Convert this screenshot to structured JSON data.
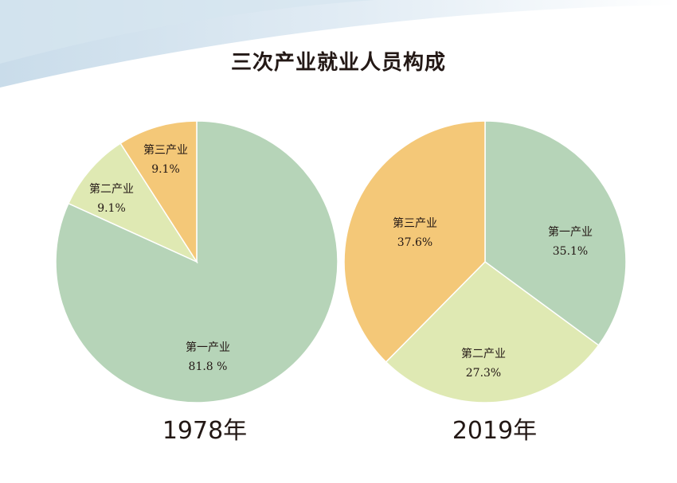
{
  "chart_data": [
    {
      "type": "pie",
      "title": "三次产业就业人员构成",
      "caption": "1978年",
      "slices": [
        {
          "label": "第一产业",
          "value": 81.8,
          "value_text": "81.8 %",
          "color": "#b6d4b8"
        },
        {
          "label": "第二产业",
          "value": 9.1,
          "value_text": "9.1%",
          "color": "#dfe9b3"
        },
        {
          "label": "第三产业",
          "value": 9.1,
          "value_text": "9.1%",
          "color": "#f4c878"
        }
      ]
    },
    {
      "type": "pie",
      "title": "三次产业就业人员构成",
      "caption": "2019年",
      "slices": [
        {
          "label": "第一产业",
          "value": 35.1,
          "value_text": "35.1%",
          "color": "#b6d4b8"
        },
        {
          "label": "第二产业",
          "value": 27.3,
          "value_text": "27.3%",
          "color": "#dfe9b3"
        },
        {
          "label": "第三产业",
          "value": 37.6,
          "value_text": "37.6%",
          "color": "#f4c878"
        }
      ]
    }
  ],
  "page": {
    "title": "三次产业就业人员构成",
    "caption_left": "1978年",
    "caption_right": "2019年"
  }
}
